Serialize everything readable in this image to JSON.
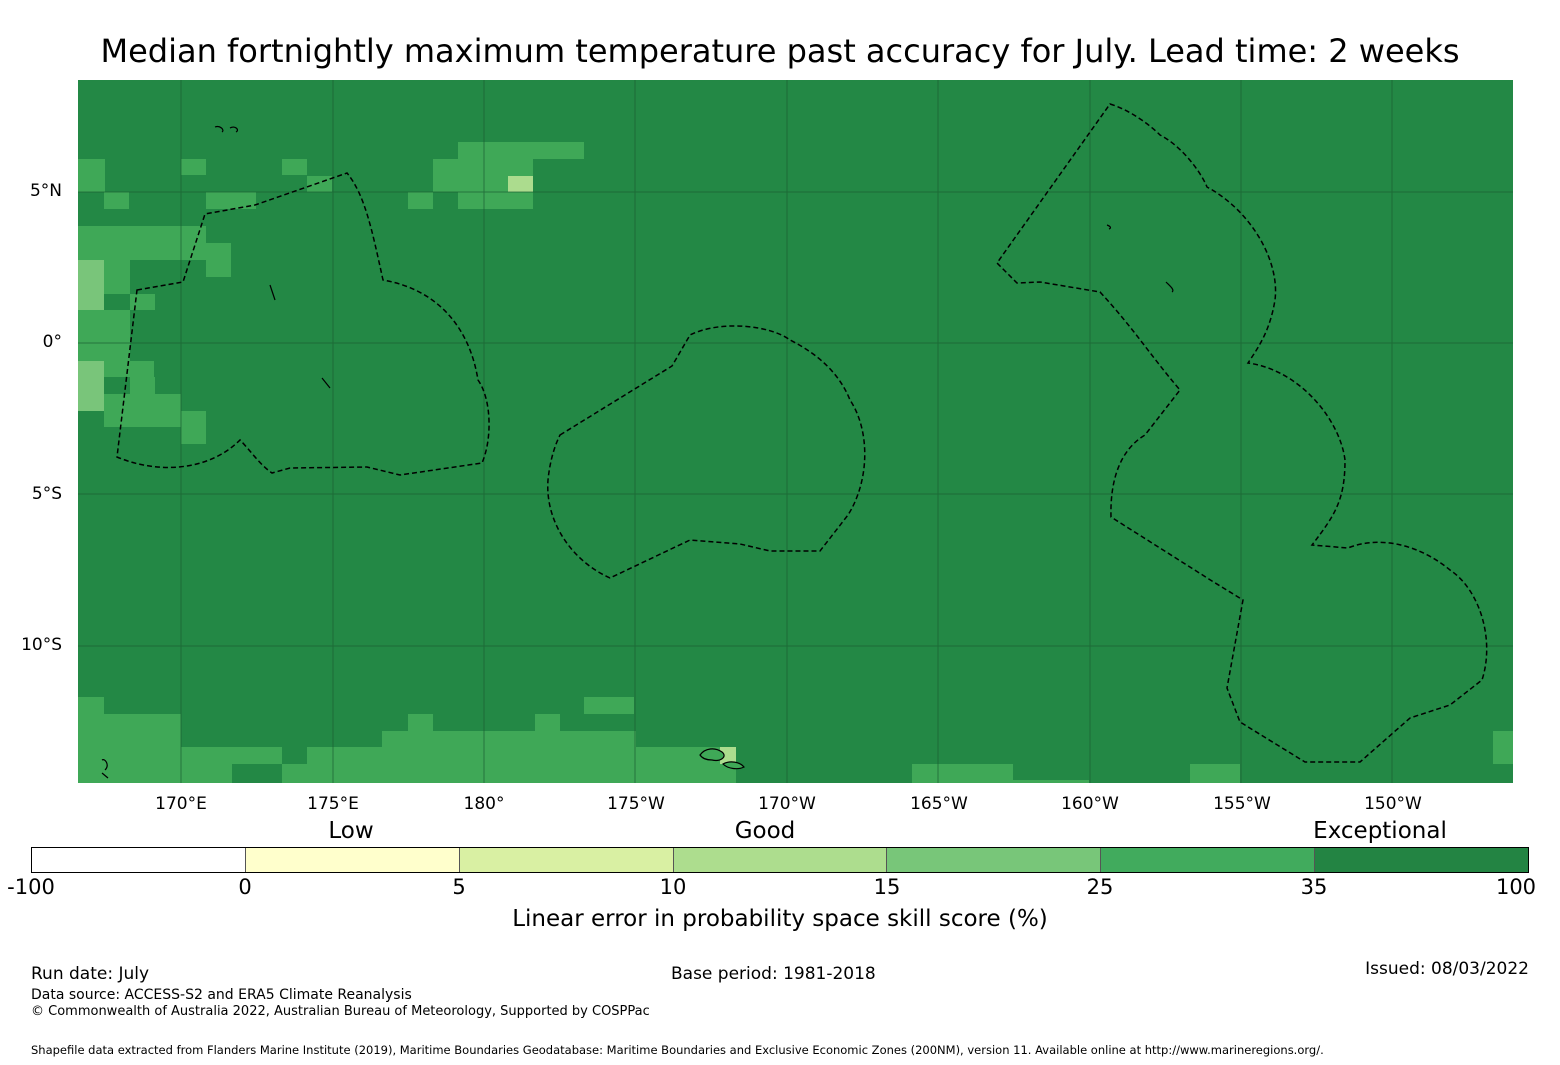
{
  "title": "Median fortnightly maximum temperature past accuracy for July. Lead time: 2 weeks",
  "map": {
    "lat_labels": [
      "5°N",
      "0°",
      "5°S",
      "10°S"
    ],
    "lon_labels": [
      "170°E",
      "175°E",
      "180°",
      "175°W",
      "170°W",
      "165°W",
      "160°W",
      "155°W",
      "150°W"
    ],
    "extent": {
      "lon_min": "166.6°E",
      "lon_max": "146.1°W",
      "lat_min": "14.6°S",
      "lat_max": "8.5°N"
    },
    "dominant_category": "35 to 100",
    "gridlines": true,
    "boundaries": "dashed exclusive economic zones",
    "colors": {
      "ocean_fill": "#238845",
      "cell_medium": "#3fa857",
      "cell_light": "#79c57a",
      "cell_lighter": "#acdc8e",
      "boundary": "#000000"
    }
  },
  "colorbar": {
    "category_labels": [
      "Low",
      "Good",
      "Exceptional"
    ],
    "ticks": [
      "-100",
      "0",
      "5",
      "10",
      "15",
      "25",
      "35",
      "100"
    ],
    "colors": [
      "#ffffff",
      "#ffffcc",
      "#d9f0a3",
      "#addd8e",
      "#78c679",
      "#41ab5d",
      "#238443"
    ],
    "axis_label": "Linear error in probability space skill score (%)"
  },
  "footer": {
    "run_date": "Run date: July",
    "base_period": "Base period: 1981-2018",
    "issued": "Issued: 08/03/2022",
    "data_source": "Data source: ACCESS-S2 and ERA5 Climate Reanalysis",
    "copyright": "© Commonwealth of Australia 2022, Australian Bureau of Meteorology, Supported by COSPPac",
    "shapefile": "Shapefile data extracted from Flanders Marine Institute (2019), Maritime Boundaries Geodatabase: Maritime Boundaries and Exclusive Economic Zones (200NM), version 11. Available online at http://www.marineregions.org/."
  }
}
